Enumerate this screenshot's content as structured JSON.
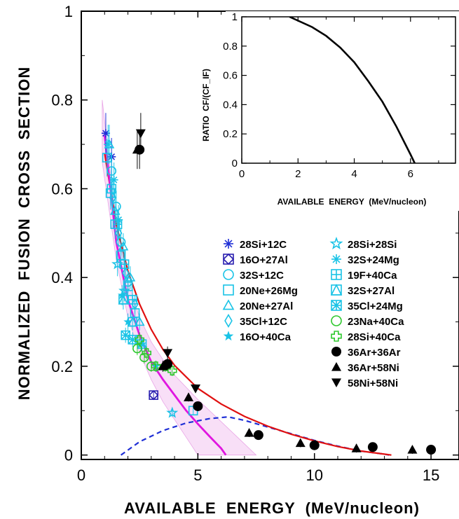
{
  "chart_data": [
    {
      "type": "scatter",
      "xlabel": "AVAILABLE  ENERGY  (MeV/nucleon)",
      "ylabel": "NORMALIZED  FUSION  CROSS  SECTION",
      "xlim": [
        0,
        16.2
      ],
      "ylim": [
        -0.01,
        1.0
      ],
      "x_ticks": [
        "0",
        "5",
        "10",
        "15"
      ],
      "y_ticks": [
        "0",
        "0.2",
        "0.4",
        "0.6",
        "0.8",
        "1"
      ],
      "grid": false,
      "legend_position": "center-right",
      "series": [
        {
          "name": "28Si+12C",
          "marker": "asterisk",
          "color": "#1f2fd6",
          "points": [
            [
              1.05,
              0.725
            ],
            [
              1.3,
              0.672
            ]
          ]
        },
        {
          "name": "16O+27Al",
          "marker": "diamond-in-square",
          "color": "#2a1fb0",
          "points": [
            [
              3.1,
              0.135
            ]
          ]
        },
        {
          "name": "32S+12C",
          "marker": "circle-open",
          "color": "#19c3e6",
          "points": [
            [
              1.3,
              0.64
            ],
            [
              1.5,
              0.56
            ],
            [
              1.7,
              0.48
            ],
            [
              2.0,
              0.39
            ]
          ]
        },
        {
          "name": "20Ne+26Mg",
          "marker": "square-open",
          "color": "#19c3e6",
          "points": [
            [
              1.1,
              0.67
            ],
            [
              1.25,
              0.59
            ],
            [
              1.45,
              0.52
            ],
            [
              1.7,
              0.45
            ],
            [
              2.0,
              0.38
            ],
            [
              2.3,
              0.32
            ],
            [
              4.8,
              0.1
            ]
          ]
        },
        {
          "name": "20Ne+27Al",
          "marker": "triangle-open",
          "color": "#19c3e6",
          "points": [
            [
              1.2,
              0.7
            ],
            [
              1.45,
              0.55
            ],
            [
              1.8,
              0.47
            ],
            [
              2.1,
              0.4
            ],
            [
              2.5,
              0.3
            ]
          ]
        },
        {
          "name": "35Cl+12C",
          "marker": "diamond-open",
          "color": "#19c3e6",
          "points": [
            [
              1.35,
              0.58
            ],
            [
              1.6,
              0.5
            ],
            [
              1.9,
              0.41
            ],
            [
              2.3,
              0.34
            ]
          ]
        },
        {
          "name": "16O+40Ca",
          "marker": "star-filled",
          "color": "#19c3e6",
          "points": [
            [
              1.75,
              0.36
            ],
            [
              2.0,
              0.3
            ],
            [
              2.6,
              0.25
            ],
            [
              3.2,
              0.2
            ]
          ]
        },
        {
          "name": "28Si+28Si",
          "marker": "star-open",
          "color": "#19c3e6",
          "points": [
            [
              1.55,
              0.43
            ],
            [
              1.85,
              0.37
            ],
            [
              3.9,
              0.095
            ]
          ]
        },
        {
          "name": "32S+24Mg",
          "marker": "asterisk",
          "color": "#19c3e6",
          "points": [
            [
              1.15,
              0.7
            ],
            [
              1.4,
              0.62
            ],
            [
              1.6,
              0.53
            ]
          ]
        },
        {
          "name": "19F+40Ca",
          "marker": "square-cross",
          "color": "#19c3e6",
          "points": [
            [
              1.3,
              0.6
            ],
            [
              1.55,
              0.52
            ],
            [
              1.85,
              0.43
            ],
            [
              2.2,
              0.35
            ]
          ]
        },
        {
          "name": "32S+27Al",
          "marker": "triangle-in-square",
          "color": "#19c3e6",
          "points": [
            [
              1.8,
              0.35
            ],
            [
              2.2,
              0.3
            ],
            [
              2.6,
              0.25
            ]
          ]
        },
        {
          "name": "35Cl+24Mg",
          "marker": "square-x",
          "color": "#19c3e6",
          "points": [
            [
              1.9,
              0.27
            ],
            [
              2.2,
              0.26
            ]
          ]
        },
        {
          "name": "23Na+40Ca",
          "marker": "circle-open",
          "color": "#2ec82e",
          "points": [
            [
              2.4,
              0.24
            ],
            [
              2.7,
              0.22
            ],
            [
              3.0,
              0.2
            ]
          ]
        },
        {
          "name": "28Si+40Ca",
          "marker": "plus-open",
          "color": "#2ec82e",
          "points": [
            [
              2.5,
              0.26
            ],
            [
              2.8,
              0.23
            ],
            [
              3.2,
              0.2
            ],
            [
              3.6,
              0.2
            ],
            [
              3.9,
              0.19
            ]
          ]
        },
        {
          "name": "36Ar+36Ar",
          "marker": "circle-filled",
          "color": "#000000",
          "points": [
            [
              2.5,
              0.688
            ],
            [
              3.7,
              0.205
            ],
            [
              5.0,
              0.11
            ],
            [
              7.6,
              0.045
            ],
            [
              10.0,
              0.022
            ],
            [
              12.5,
              0.018
            ],
            [
              15.0,
              0.012
            ]
          ]
        },
        {
          "name": "36Ar+58Ni",
          "marker": "triangle-filled",
          "color": "#000000",
          "points": [
            [
              2.4,
              0.688
            ],
            [
              3.5,
              0.2
            ],
            [
              4.6,
              0.13
            ],
            [
              7.2,
              0.05
            ],
            [
              9.4,
              0.027
            ],
            [
              11.8,
              0.015
            ],
            [
              14.2,
              0.012
            ]
          ]
        },
        {
          "name": "58Ni+58Ni",
          "marker": "triangle-down-filled",
          "color": "#000000",
          "points": [
            [
              2.55,
              0.725
            ],
            [
              3.7,
              0.23
            ],
            [
              4.9,
              0.15
            ]
          ]
        }
      ],
      "curves": [
        {
          "kind": "red-fit",
          "color": "#e01010",
          "x": [
            1.0,
            1.5,
            2.0,
            2.5,
            3.0,
            3.5,
            4.0,
            5.0,
            6.0,
            7.0,
            8.0,
            9.0,
            10.0,
            11.0,
            12.0,
            13.0,
            13.3
          ],
          "y": [
            0.68,
            0.52,
            0.415,
            0.34,
            0.283,
            0.238,
            0.202,
            0.15,
            0.115,
            0.087,
            0.065,
            0.047,
            0.032,
            0.019,
            0.009,
            0.002,
            0.0
          ]
        },
        {
          "kind": "magenta-fit",
          "color": "#e016e0",
          "x": [
            1.0,
            1.5,
            2.0,
            2.5,
            3.0,
            3.5,
            4.0,
            4.5,
            5.0,
            5.5,
            6.0,
            6.2
          ],
          "y": [
            0.72,
            0.48,
            0.35,
            0.27,
            0.21,
            0.17,
            0.135,
            0.1,
            0.07,
            0.042,
            0.015,
            0.0
          ]
        },
        {
          "kind": "band-upper",
          "color": "#f3c4f0",
          "x": [
            0.9,
            1.5,
            2.0,
            2.5,
            3.0,
            3.5,
            4.0,
            5.0,
            6.0,
            7.0,
            7.5
          ],
          "y": [
            0.8,
            0.52,
            0.39,
            0.31,
            0.255,
            0.215,
            0.18,
            0.125,
            0.075,
            0.025,
            0.0
          ]
        },
        {
          "kind": "band-lower",
          "color": "#f3c4f0",
          "x": [
            0.9,
            1.5,
            2.0,
            2.5,
            3.0,
            3.5,
            4.0,
            4.5,
            5.0
          ],
          "y": [
            0.66,
            0.44,
            0.31,
            0.23,
            0.17,
            0.12,
            0.08,
            0.04,
            0.0
          ]
        },
        {
          "kind": "blue-dashed",
          "color": "#1f2fd6",
          "x": [
            1.7,
            2.5,
            3.5,
            4.5,
            5.5,
            6.3,
            7.0,
            8.0,
            9.0,
            10.0,
            11.0,
            12.0,
            13.0,
            13.2
          ],
          "y": [
            0.0,
            0.03,
            0.055,
            0.072,
            0.082,
            0.086,
            0.078,
            0.063,
            0.048,
            0.033,
            0.02,
            0.009,
            0.002,
            0.0
          ]
        }
      ]
    },
    {
      "type": "line",
      "title": "",
      "xlabel": "AVAILABLE  ENERGY  (MeV/nucleon)",
      "ylabel": "RATIO  CF/(CF_IF)",
      "xlim": [
        0,
        7.6
      ],
      "ylim": [
        0,
        1.0
      ],
      "x_ticks": [
        "0",
        "2",
        "4",
        "6"
      ],
      "y_ticks": [
        "0",
        "0.2",
        "0.4",
        "0.6",
        "0.8",
        "1"
      ],
      "series": [
        {
          "x": [
            1.7,
            2.5,
            3.0,
            3.5,
            4.0,
            4.5,
            5.0,
            5.5,
            6.0,
            6.15
          ],
          "y": [
            1.0,
            0.93,
            0.87,
            0.79,
            0.69,
            0.56,
            0.42,
            0.25,
            0.06,
            0.0
          ]
        }
      ]
    }
  ]
}
